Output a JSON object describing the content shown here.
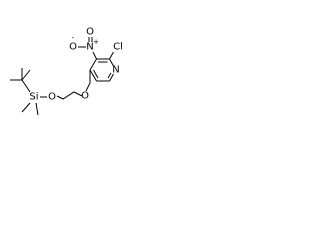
{
  "atoms": {
    "chlorine": "Cl",
    "ring_nitrogen": "N",
    "nitro_nitrogen": "N",
    "nitro_charge": "+",
    "nitro_oxygen_single": "O",
    "oxygen_charge": "-",
    "nitro_oxygen_double": "O",
    "ether_oxygen": "O",
    "silyl_oxygen": "O",
    "silicon": "Si"
  }
}
